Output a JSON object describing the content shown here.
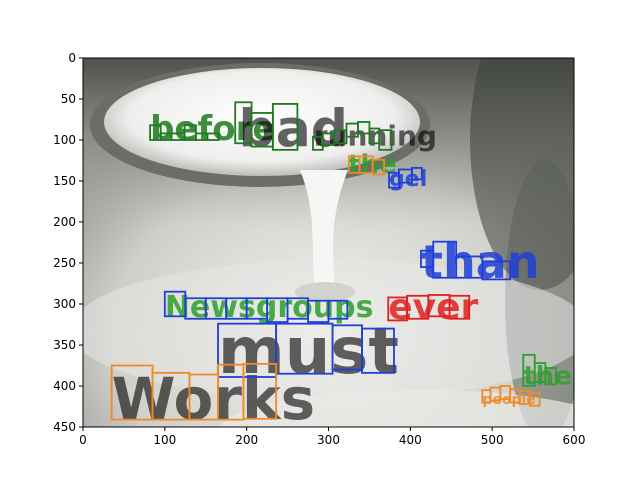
{
  "figure": {
    "x_ticks": [
      "0",
      "100",
      "200",
      "300",
      "400",
      "500",
      "600"
    ],
    "y_ticks": [
      "0",
      "50",
      "100",
      "150",
      "200",
      "250",
      "300",
      "350",
      "400",
      "450"
    ],
    "x_range": [
      0,
      600
    ],
    "y_range": [
      0,
      450
    ],
    "y_axis_inverted": true
  },
  "colors": {
    "green": "#2ca02c",
    "darkgreen": "#1f7a1f",
    "blue": "#1f3fd8",
    "red": "#e02020",
    "orange": "#f08a24",
    "black": "#000000"
  },
  "words": [
    {
      "text": "before",
      "color": "darkgreen",
      "boxes": [
        [
          82,
          82,
          95,
          100
        ],
        [
          95,
          92,
          108,
          100
        ],
        [
          108,
          92,
          124,
          100
        ],
        [
          124,
          82,
          138,
          100
        ],
        [
          138,
          92,
          152,
          100
        ],
        [
          152,
          92,
          166,
          100
        ]
      ]
    },
    {
      "text": "bad",
      "color": "darkgreen",
      "boxes": [
        [
          186,
          54,
          206,
          104
        ],
        [
          206,
          67,
          232,
          108
        ],
        [
          232,
          56,
          262,
          112
        ]
      ]
    },
    {
      "text": "running",
      "color": "darkgreen",
      "boxes": [
        [
          281,
          96,
          293,
          112
        ],
        [
          293,
          92,
          307,
          106
        ],
        [
          307,
          88,
          322,
          104
        ],
        [
          322,
          80,
          336,
          96
        ],
        [
          336,
          78,
          350,
          92
        ],
        [
          350,
          86,
          362,
          104
        ],
        [
          362,
          88,
          377,
          112
        ]
      ]
    },
    {
      "text": "the",
      "color": "orange",
      "boxes": [
        [
          325,
          120,
          338,
          140
        ],
        [
          338,
          120,
          354,
          140
        ],
        [
          354,
          124,
          368,
          142
        ]
      ]
    },
    {
      "text": "gel",
      "color": "blue",
      "boxes": [
        [
          374,
          140,
          386,
          158
        ],
        [
          386,
          136,
          402,
          152
        ],
        [
          402,
          134,
          414,
          148
        ]
      ]
    },
    {
      "text": "than",
      "color": "blue",
      "boxes": [
        [
          413,
          235,
          428,
          255
        ],
        [
          428,
          224,
          456,
          268
        ],
        [
          456,
          242,
          488,
          268
        ],
        [
          488,
          248,
          522,
          270
        ]
      ]
    },
    {
      "text": "Newsgroups",
      "color": "blue",
      "boxes": [
        [
          100,
          285,
          125,
          315
        ],
        [
          125,
          293,
          150,
          318
        ],
        [
          150,
          293,
          175,
          318
        ],
        [
          175,
          293,
          200,
          318
        ],
        [
          200,
          293,
          225,
          318
        ],
        [
          225,
          293,
          250,
          322
        ],
        [
          250,
          293,
          275,
          318
        ],
        [
          275,
          296,
          300,
          322
        ],
        [
          300,
          296,
          323,
          318
        ]
      ]
    },
    {
      "text": "ever",
      "color": "red",
      "boxes": [
        [
          373,
          292,
          396,
          320
        ],
        [
          396,
          290,
          422,
          318
        ],
        [
          422,
          289,
          448,
          315
        ],
        [
          448,
          290,
          472,
          318
        ]
      ]
    },
    {
      "text": "must",
      "color": "blue",
      "boxes": [
        [
          165,
          324,
          236,
          389
        ],
        [
          236,
          324,
          305,
          385
        ],
        [
          305,
          326,
          341,
          380
        ],
        [
          341,
          330,
          380,
          384
        ]
      ]
    },
    {
      "text": "Works",
      "color": "orange",
      "boxes": [
        [
          35,
          375,
          85,
          441
        ],
        [
          85,
          384,
          130,
          441
        ],
        [
          130,
          386,
          165,
          441
        ],
        [
          165,
          374,
          196,
          441
        ],
        [
          196,
          373,
          236,
          440
        ]
      ]
    },
    {
      "text": "the",
      "color": "green",
      "boxes": [
        [
          538,
          362,
          552,
          400
        ],
        [
          552,
          372,
          565,
          395
        ],
        [
          565,
          378,
          578,
          398
        ]
      ]
    },
    {
      "text": "people",
      "color": "orange",
      "boxes": [
        [
          488,
          405,
          498,
          420
        ],
        [
          498,
          402,
          510,
          418
        ],
        [
          510,
          400,
          522,
          416
        ],
        [
          522,
          404,
          534,
          420
        ],
        [
          534,
          406,
          546,
          422
        ],
        [
          546,
          408,
          558,
          424
        ]
      ]
    }
  ],
  "labels": [
    {
      "text": "before",
      "color": "darkgreen",
      "x": 82,
      "y": 100,
      "size": 34
    },
    {
      "text": "bad",
      "color": "black",
      "x": 190,
      "y": 108,
      "size": 52
    },
    {
      "text": "running",
      "color": "black",
      "x": 282,
      "y": 107,
      "size": 28
    },
    {
      "text": "the",
      "color": "green",
      "x": 324,
      "y": 140,
      "size": 26
    },
    {
      "text": "gel",
      "color": "blue",
      "x": 374,
      "y": 156,
      "size": 22
    },
    {
      "text": "than",
      "color": "blue",
      "x": 413,
      "y": 268,
      "size": 46
    },
    {
      "text": "Newsgroups",
      "color": "green",
      "x": 100,
      "y": 316,
      "size": 30
    },
    {
      "text": "ever",
      "color": "red",
      "x": 373,
      "y": 318,
      "size": 36
    },
    {
      "text": "must",
      "color": "black",
      "x": 165,
      "y": 384,
      "size": 64
    },
    {
      "text": "Works",
      "color": "black",
      "x": 35,
      "y": 440,
      "size": 58
    },
    {
      "text": "the",
      "color": "green",
      "x": 538,
      "y": 398,
      "size": 26
    },
    {
      "text": "people",
      "color": "orange",
      "x": 488,
      "y": 422,
      "size": 14
    }
  ]
}
